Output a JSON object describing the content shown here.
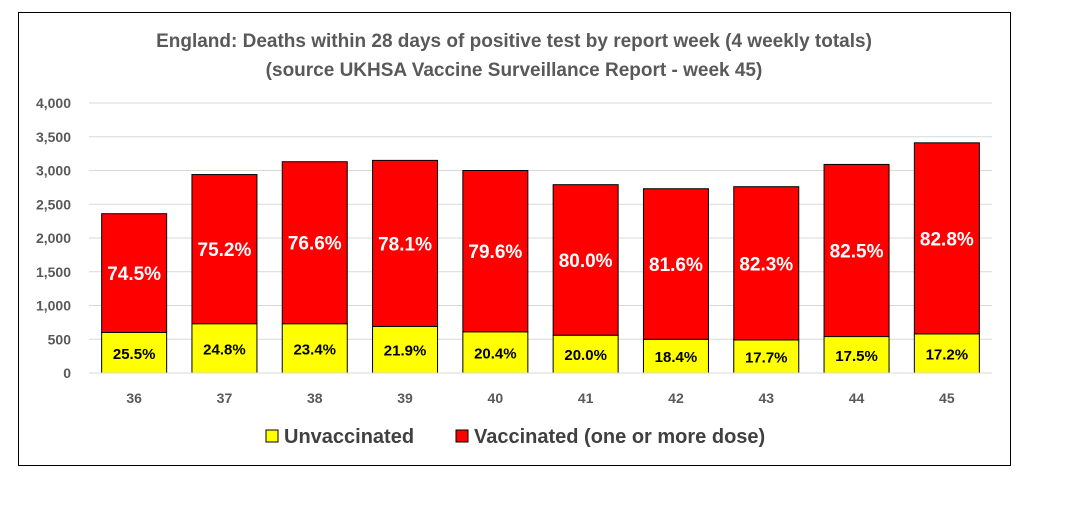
{
  "chart_data": {
    "type": "bar",
    "stacked": true,
    "title": "England: Deaths within 28 days of positive test by report week (4 weekly totals)",
    "subtitle": "(source UKHSA Vaccine Surveillance Report - week 45)",
    "xlabel": "",
    "ylabel": "",
    "ylim": [
      0,
      4000
    ],
    "yticks": [
      0,
      500,
      1000,
      1500,
      2000,
      2500,
      3000,
      3500,
      4000
    ],
    "ytick_labels": [
      "0",
      "500",
      "1,000",
      "1,500",
      "2,000",
      "2,500",
      "3,000",
      "3,500",
      "4,000"
    ],
    "grid": true,
    "legend_position": "bottom",
    "categories": [
      "36",
      "37",
      "38",
      "39",
      "40",
      "41",
      "42",
      "43",
      "44",
      "45"
    ],
    "series": [
      {
        "name": "Unvaccinated",
        "color": "#ffff00",
        "values": [
          600,
          730,
          730,
          690,
          610,
          560,
          500,
          490,
          540,
          580
        ],
        "labels": [
          "25.5%",
          "24.8%",
          "23.4%",
          "21.9%",
          "20.4%",
          "20.0%",
          "18.4%",
          "17.7%",
          "17.5%",
          "17.2%"
        ]
      },
      {
        "name": "Vaccinated (one or more dose)",
        "color": "#ff0000",
        "values": [
          1760,
          2210,
          2400,
          2460,
          2390,
          2230,
          2230,
          2270,
          2550,
          2830
        ],
        "labels": [
          "74.5%",
          "75.2%",
          "76.6%",
          "78.1%",
          "79.6%",
          "80.0%",
          "81.6%",
          "82.3%",
          "82.5%",
          "82.8%"
        ]
      }
    ]
  }
}
